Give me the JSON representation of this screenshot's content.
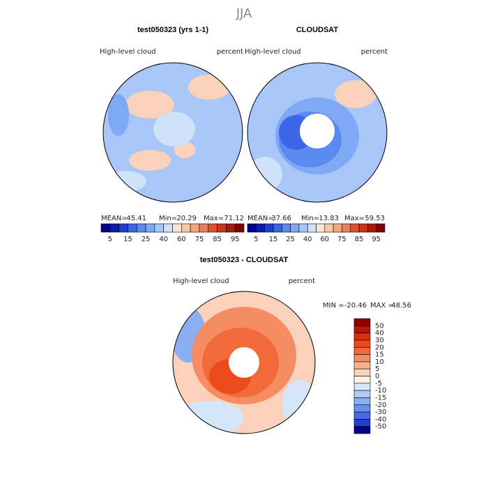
{
  "title": "JJA",
  "panels": [
    {
      "title": "test050323 (yrs 1-1)",
      "left_label": "High-level cloud",
      "right_label": "percent",
      "stats": {
        "mean_label": "MEAN=",
        "mean": 45.41,
        "min_label": "Min=",
        "min": 20.29,
        "max_label": "Max=",
        "max": 71.12
      }
    },
    {
      "title": "CLOUDSAT",
      "left_label": "High-level cloud",
      "right_label": "percent",
      "stats": {
        "mean_label": "MEAN=",
        "mean": 37.66,
        "min_label": "Min=",
        "min": 13.83,
        "max_label": "Max=",
        "max": 59.53
      }
    },
    {
      "title": "test050323 - CLOUDSAT",
      "left_label": "High-level cloud",
      "right_label": "percent",
      "stats": {
        "min_label": "MIN =",
        "min": -20.46,
        "max_label": "MAX =",
        "max": 48.56
      }
    }
  ],
  "colorbar_top": {
    "labels": [
      5,
      15,
      25,
      40,
      60,
      75,
      85,
      95
    ],
    "colors": [
      "#00008b",
      "#0a1fa8",
      "#1e3fd0",
      "#3b66e8",
      "#5a8af0",
      "#7fa8f5",
      "#a8c6f8",
      "#d0e2fa",
      "#fbe6d6",
      "#f7c8a8",
      "#f4a582",
      "#ee7d5a",
      "#e0522f",
      "#cc3418",
      "#a81a0a",
      "#7f0000"
    ]
  },
  "colorbar_diff": {
    "labels": [
      50,
      40,
      30,
      20,
      15,
      10,
      5,
      0,
      -5,
      -10,
      -15,
      -20,
      -30,
      -40,
      -50
    ],
    "colors": [
      "#8b0000",
      "#b81408",
      "#d8300a",
      "#ec4a1a",
      "#f26a3a",
      "#f58c62",
      "#f7b08e",
      "#fad2bc",
      "#fdf0e4",
      "#d6e6fa",
      "#b0cbf5",
      "#8aaef0",
      "#6a8ef0",
      "#4468e8",
      "#1e3fd0",
      "#00008b"
    ]
  }
}
